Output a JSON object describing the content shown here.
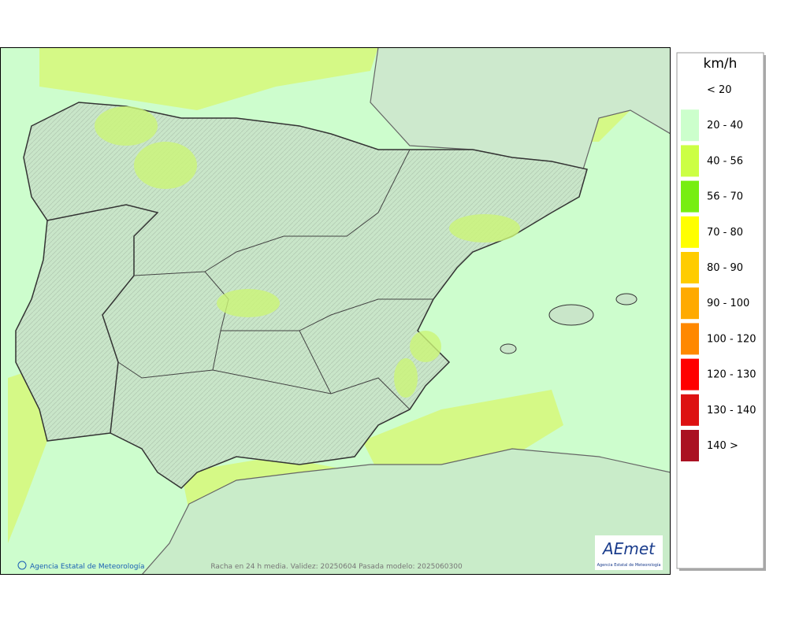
{
  "legend": {
    "title": "km/h",
    "items": [
      {
        "label": "< 20"
      },
      {
        "label": "20 - 40",
        "color": "#ccffcc"
      },
      {
        "label": "40 - 56",
        "color": "#ccff44"
      },
      {
        "label": "56 - 70",
        "color": "#77ee11"
      },
      {
        "label": "70 - 80",
        "color": "#ffff00"
      },
      {
        "label": "80 - 90",
        "color": "#ffcc00"
      },
      {
        "label": "90 - 100",
        "color": "#ffaa00"
      },
      {
        "label": "100 - 120",
        "color": "#ff8800"
      },
      {
        "label": "120 - 130",
        "color": "#ff0000"
      },
      {
        "label": "130 - 140",
        "color": "#dd1111"
      },
      {
        "label": "140 >",
        "color": "#aa1122"
      }
    ]
  },
  "footer": {
    "credit": "Agencia Estatal de Meteorología",
    "caption": "Racha en 24 h media. Validez: 20250604 Pasada modelo: 2025060300"
  },
  "logo": {
    "name": "AEmet",
    "subtitle": "Agencia Estatal de Meteorología"
  }
}
